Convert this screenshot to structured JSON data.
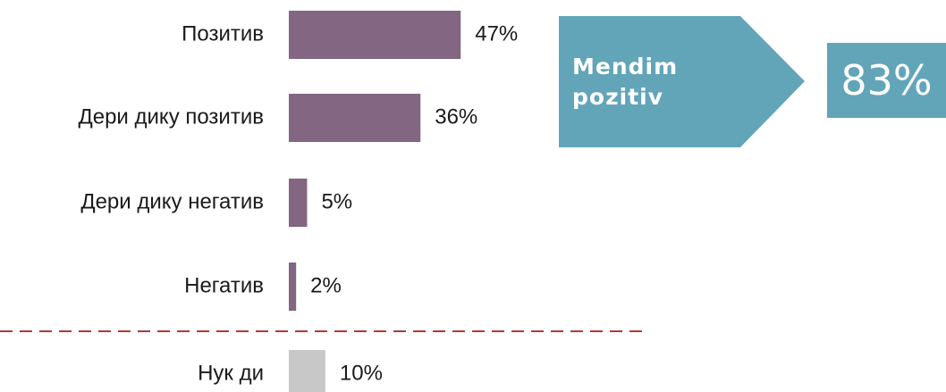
{
  "chart_data": {
    "type": "bar",
    "orientation": "horizontal",
    "categories": [
      "Позитив",
      "Дери дику позитив",
      "Дери дику негатив",
      "Негатив",
      "Нук ди"
    ],
    "values": [
      47,
      36,
      5,
      2,
      10
    ],
    "value_labels": [
      "47%",
      "36%",
      "5%",
      "2%",
      "10%"
    ],
    "colors": [
      "#826682",
      "#826682",
      "#826682",
      "#826682",
      "#c8c8c8"
    ],
    "callout": {
      "label": "Mendim pozitiv",
      "value_label": "83%",
      "color": "#62a5b8"
    },
    "separator_color": "#b03a3a"
  }
}
